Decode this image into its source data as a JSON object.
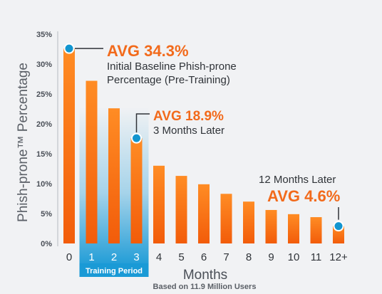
{
  "chart_data": {
    "type": "bar",
    "categories": [
      "0",
      "1",
      "2",
      "3",
      "4",
      "5",
      "6",
      "7",
      "8",
      "9",
      "10",
      "11",
      "12+"
    ],
    "values": [
      32.6,
      27.2,
      22.6,
      17.6,
      13.0,
      11.3,
      9.9,
      8.3,
      7.0,
      5.6,
      4.9,
      4.4,
      2.9
    ],
    "ylabel": "Phish-prone™ Percentage",
    "xlabel": "Months",
    "ylim": [
      0,
      35
    ],
    "yticks": [
      "0%",
      "5%",
      "10%",
      "15%",
      "20%",
      "25%",
      "30%",
      "35%"
    ],
    "grid": false,
    "training_band": {
      "label": "Training Period",
      "months": [
        "1",
        "2",
        "3"
      ]
    },
    "annotations": [
      {
        "month": "0",
        "value": "AVG 34.3%",
        "lines": [
          "Initial Baseline Phish-prone",
          "Percentage (Pre-Training)"
        ]
      },
      {
        "month": "3",
        "value": "AVG 18.9%",
        "lines": [
          "3 Months Later"
        ]
      },
      {
        "month": "12+",
        "value": "AVG 4.6%",
        "lines": [
          "12 Months Later"
        ]
      }
    ],
    "footnote": "Based on 11.9 Million Users",
    "colors": {
      "bar_top": "#ff8c24",
      "bar_bottom": "#f25c0a",
      "marker": "#1295cf",
      "accent_text": "#f26a1b",
      "band": "#1a9ad6",
      "axis": "#c9ccd1"
    }
  }
}
